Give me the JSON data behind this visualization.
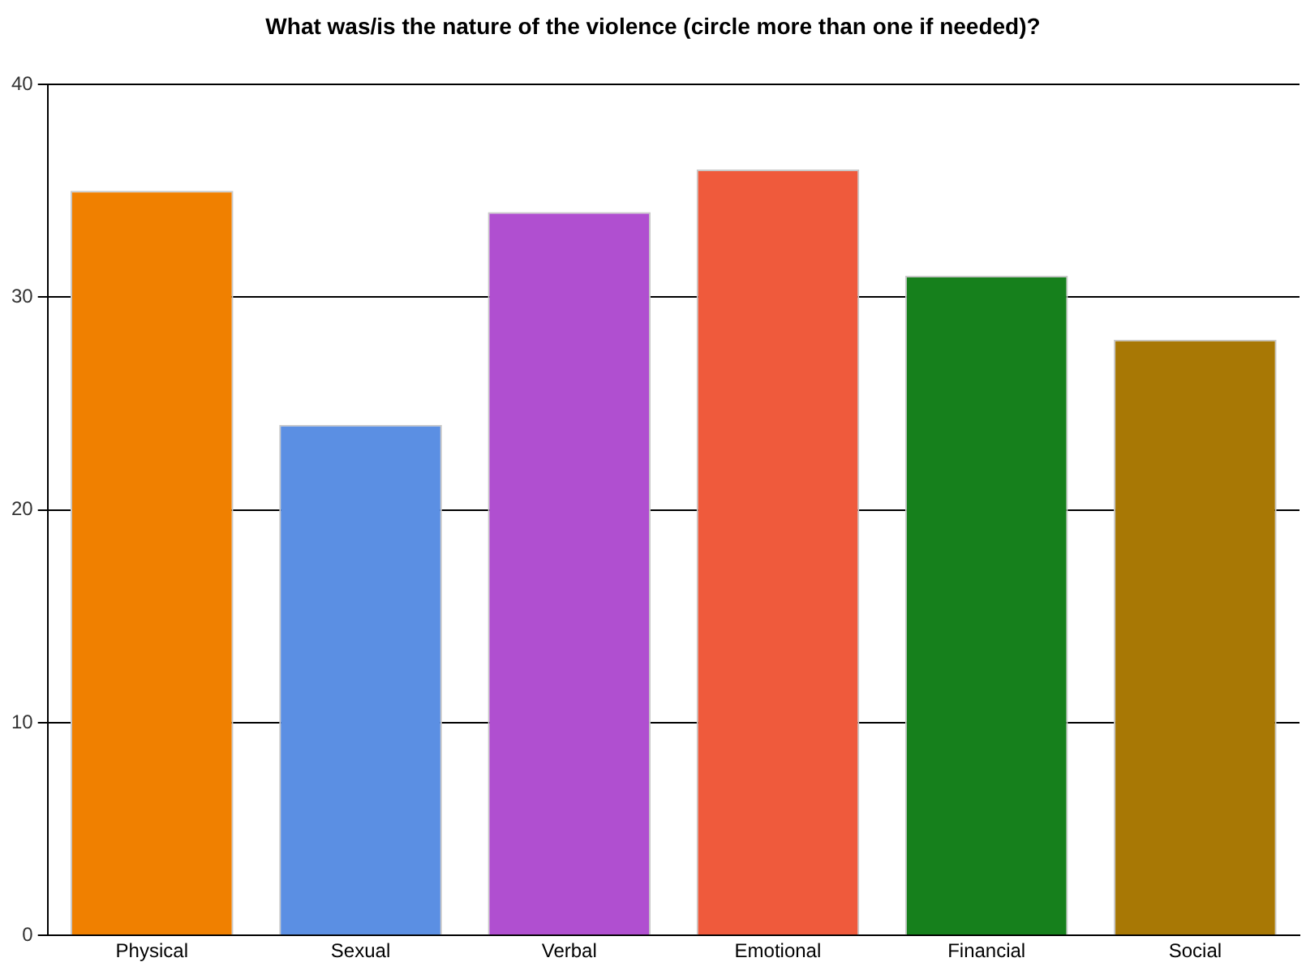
{
  "chart_data": {
    "type": "bar",
    "title": "What was/is the nature of the violence (circle more than one if needed)?",
    "categories": [
      "Physical",
      "Sexual",
      "Verbal",
      "Emotional",
      "Financial",
      "Social"
    ],
    "values": [
      35,
      24,
      34,
      36,
      31,
      28
    ],
    "colors": [
      "#f08000",
      "#5b8fe3",
      "#b04fd0",
      "#ef5a3c",
      "#16801c",
      "#a87805"
    ],
    "ylim": [
      0,
      40
    ],
    "yticks": [
      0,
      10,
      20,
      30,
      40
    ],
    "grid": "y",
    "legend": false
  }
}
